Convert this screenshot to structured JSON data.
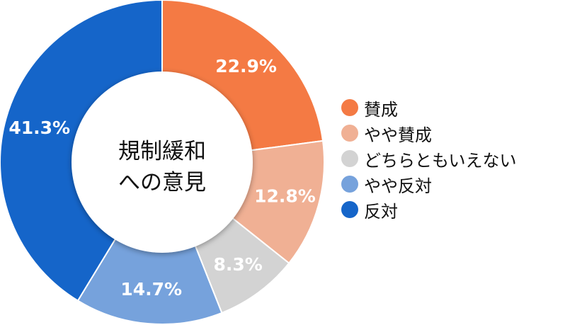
{
  "chart_data": {
    "type": "pie",
    "title": "",
    "center_label_lines": [
      "規制緩和",
      "への意見"
    ],
    "categories": [
      "賛成",
      "やや賛成",
      "どちらともいえない",
      "やや反対",
      "反対"
    ],
    "values": [
      22.9,
      12.8,
      8.3,
      14.7,
      41.3
    ],
    "value_labels": [
      "22.9%",
      "12.8%",
      "8.3%",
      "14.7%",
      "41.3%"
    ],
    "colors": [
      "#F47A44",
      "#F0B094",
      "#D3D3D3",
      "#76A2DC",
      "#1565C9"
    ],
    "donut": true,
    "legend_position": "right"
  }
}
